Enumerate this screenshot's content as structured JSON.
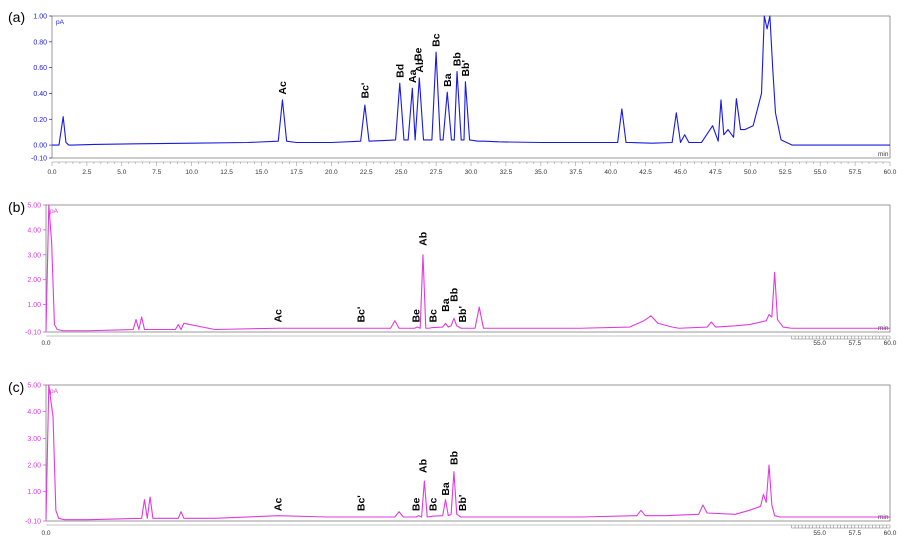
{
  "figure": {
    "panels": [
      {
        "label": "(a)",
        "yunit": "pA",
        "xunit": "min",
        "color": "#1a1adc",
        "yticks": [
          "1.00",
          "0.80",
          "0.60",
          "0.40",
          "0.20",
          "0.00",
          "-0.10"
        ],
        "ytick_values": [
          1.0,
          0.8,
          0.6,
          0.4,
          0.2,
          0.0,
          -0.1
        ],
        "xticks": [
          "0.0",
          "2.5",
          "5.0",
          "7.5",
          "10.0",
          "12.5",
          "15.0",
          "17.5",
          "20.0",
          "22.5",
          "25.0",
          "27.5",
          "30.0",
          "32.5",
          "35.0",
          "37.5",
          "40.0",
          "42.5",
          "45.0",
          "47.5",
          "50.0",
          "52.5",
          "55.0",
          "57.5",
          "60.0"
        ],
        "xtick_values": [
          0,
          2.5,
          5,
          7.5,
          10,
          12.5,
          15,
          17.5,
          20,
          22.5,
          25,
          27.5,
          30,
          32.5,
          35,
          37.5,
          40,
          42.5,
          45,
          47.5,
          50,
          52.5,
          55,
          57.5,
          60
        ],
        "peak_labels": [
          {
            "text": "Ac",
            "t": 16.5,
            "y": 0.36
          },
          {
            "text": "Bc'",
            "t": 22.4,
            "y": 0.33
          },
          {
            "text": "Bd",
            "t": 24.9,
            "y": 0.49
          },
          {
            "text": "Aa",
            "t": 25.8,
            "y": 0.45
          },
          {
            "text": "Ab",
            "t": 26.3,
            "y": 0.53
          },
          {
            "text": "Be",
            "t": 26.2,
            "y": 0.62
          },
          {
            "text": "Bc",
            "t": 27.5,
            "y": 0.73
          },
          {
            "text": "Ba",
            "t": 28.3,
            "y": 0.42
          },
          {
            "text": "Bb",
            "t": 29.0,
            "y": 0.58
          },
          {
            "text": "Bb'",
            "t": 29.6,
            "y": 0.5
          }
        ]
      },
      {
        "label": "(b)",
        "yunit": "pA",
        "xunit": "min",
        "color": "#e03be0",
        "yticks": [
          "5.00",
          "4.00",
          "3.00",
          "2.00",
          "1.00",
          "-0.10"
        ],
        "ytick_values": [
          5.0,
          4.0,
          3.0,
          2.0,
          1.0,
          -0.1
        ],
        "xticks": [
          "0.0",
          "55.0",
          "57.5",
          "60.0"
        ],
        "xtick_values": [
          0,
          55,
          57.5,
          60
        ],
        "peak_labels": [
          {
            "text": "Ac",
            "t": 16.5,
            "y": 0.12
          },
          {
            "text": "Bc'",
            "t": 22.4,
            "y": 0.12
          },
          {
            "text": "Be",
            "t": 26.3,
            "y": 0.12
          },
          {
            "text": "Ab",
            "t": 26.8,
            "y": 3.2
          },
          {
            "text": "Bc",
            "t": 27.5,
            "y": 0.12
          },
          {
            "text": "Ba",
            "t": 28.4,
            "y": 0.55
          },
          {
            "text": "Bb",
            "t": 29.0,
            "y": 0.95
          },
          {
            "text": "Bb'",
            "t": 29.6,
            "y": 0.12
          }
        ]
      },
      {
        "label": "(c)",
        "yunit": "pA",
        "xunit": "min",
        "color": "#e03be0",
        "yticks": [
          "5.00",
          "4.00",
          "3.00",
          "2.00",
          "1.00",
          "-0.10"
        ],
        "ytick_values": [
          5.0,
          4.0,
          3.0,
          2.0,
          1.0,
          -0.1
        ],
        "xticks": [
          "0.0",
          "55.0",
          "57.5",
          "60.0"
        ],
        "xtick_values": [
          0,
          55,
          57.5,
          60
        ],
        "peak_labels": [
          {
            "text": "Ac",
            "t": 16.5,
            "y": 0.12
          },
          {
            "text": "Bc'",
            "t": 22.4,
            "y": 0.12
          },
          {
            "text": "Be",
            "t": 26.3,
            "y": 0.12
          },
          {
            "text": "Ab",
            "t": 26.8,
            "y": 1.55
          },
          {
            "text": "Bc",
            "t": 27.5,
            "y": 0.12
          },
          {
            "text": "Ba",
            "t": 28.4,
            "y": 0.7
          },
          {
            "text": "Bb",
            "t": 29.0,
            "y": 1.85
          },
          {
            "text": "Bb'",
            "t": 29.6,
            "y": 0.12
          }
        ]
      }
    ]
  },
  "chart_data": [
    {
      "type": "line",
      "title": "",
      "xlabel": "min",
      "ylabel": "pA",
      "xlim": [
        0,
        60
      ],
      "ylim": [
        -0.1,
        1.0
      ],
      "grid": false,
      "series": [
        {
          "x": [
            0,
            0.5,
            0.8,
            1.0,
            1.2,
            1.5,
            3,
            6,
            10,
            14,
            16.2,
            16.5,
            16.8,
            17.5,
            20,
            22.1,
            22.4,
            22.7,
            24.6,
            24.9,
            25.2,
            25.5,
            25.8,
            26.0,
            26.3,
            26.6,
            27.2,
            27.5,
            27.8,
            28.0,
            28.3,
            28.6,
            28.8,
            29.0,
            29.3,
            29.5,
            29.6,
            29.9,
            30.5,
            31,
            32,
            35,
            38,
            40.5,
            40.8,
            41.1,
            41.4,
            43,
            44.4,
            44.7,
            45.0,
            45.3,
            45.6,
            46.5,
            47.3,
            47.7,
            47.9,
            48.1,
            48.4,
            48.8,
            49.0,
            49.3,
            49.6,
            50.2,
            50.8,
            51.0,
            51.2,
            51.4,
            51.6,
            51.8,
            52.2,
            53,
            56,
            60
          ],
          "y": [
            0.0,
            0.0,
            0.22,
            0.02,
            0.0,
            0.0,
            0.005,
            0.01,
            0.015,
            0.02,
            0.03,
            0.35,
            0.03,
            0.02,
            0.02,
            0.03,
            0.31,
            0.03,
            0.04,
            0.48,
            0.04,
            0.04,
            0.44,
            0.04,
            0.52,
            0.04,
            0.04,
            0.72,
            0.04,
            0.04,
            0.41,
            0.04,
            0.04,
            0.57,
            0.04,
            0.04,
            0.49,
            0.04,
            0.03,
            0.03,
            0.025,
            0.02,
            0.02,
            0.02,
            0.28,
            0.02,
            0.02,
            0.015,
            0.02,
            0.25,
            0.02,
            0.08,
            0.02,
            0.02,
            0.15,
            0.03,
            0.35,
            0.08,
            0.12,
            0.06,
            0.36,
            0.12,
            0.12,
            0.15,
            0.4,
            1.0,
            0.9,
            1.0,
            0.6,
            0.25,
            0.04,
            0.0,
            0.0,
            0.0
          ],
          "color": "#1a1adc"
        }
      ],
      "ticks_y": [
        "1.00",
        "0.80",
        "0.60",
        "0.40",
        "0.20",
        "0.00",
        "-0.10"
      ],
      "ticks_x": [
        "0.0",
        "2.5",
        "5.0",
        "7.5",
        "10.0",
        "12.5",
        "15.0",
        "17.5",
        "20.0",
        "22.5",
        "25.0",
        "27.5",
        "30.0",
        "32.5",
        "35.0",
        "37.5",
        "40.0",
        "42.5",
        "45.0",
        "47.5",
        "50.0",
        "52.5",
        "55.0",
        "57.5",
        "60.0"
      ]
    },
    {
      "type": "line",
      "title": "",
      "xlabel": "min",
      "ylabel": "pA",
      "xlim": [
        0,
        60
      ],
      "ylim": [
        -0.1,
        5.0
      ],
      "grid": false,
      "series": [
        {
          "x": [
            0,
            0.2,
            0.4,
            0.6,
            0.8,
            1.2,
            3,
            6.2,
            6.4,
            6.6,
            6.8,
            7.0,
            9.2,
            9.4,
            9.6,
            9.8,
            12,
            16.5,
            20,
            24.5,
            24.8,
            25.1,
            26.2,
            26.4,
            26.6,
            26.8,
            27.0,
            27.2,
            27.5,
            28.2,
            28.4,
            28.6,
            28.8,
            29.0,
            29.2,
            29.5,
            30.5,
            30.8,
            31.1,
            34,
            38,
            41.5,
            42.5,
            43,
            43.5,
            44.5,
            45,
            47,
            47.3,
            47.6,
            49,
            50,
            51.2,
            51.4,
            51.6,
            51.8,
            52.0,
            52.4,
            53,
            56,
            60
          ],
          "y": [
            -0.05,
            5.0,
            3.5,
            0.2,
            0.0,
            -0.05,
            -0.05,
            0.0,
            0.4,
            0.0,
            0.5,
            0.0,
            0.0,
            0.2,
            0.0,
            0.25,
            0.0,
            0.05,
            0.05,
            0.05,
            0.35,
            0.05,
            0.05,
            0.1,
            0.05,
            3.0,
            0.05,
            0.05,
            0.08,
            0.1,
            0.25,
            0.1,
            0.15,
            0.45,
            0.15,
            0.05,
            0.05,
            0.9,
            0.05,
            0.05,
            0.05,
            0.1,
            0.35,
            0.55,
            0.25,
            0.1,
            0.05,
            0.1,
            0.3,
            0.1,
            0.15,
            0.2,
            0.35,
            0.6,
            0.5,
            2.3,
            0.4,
            0.1,
            0.05,
            0.05,
            0.05
          ],
          "color": "#e03be0"
        }
      ],
      "ticks_y": [
        "5.00",
        "4.00",
        "3.00",
        "2.00",
        "1.00",
        "-0.10"
      ],
      "ticks_x": [
        "0.0",
        "55.0",
        "57.5",
        "60.0"
      ]
    },
    {
      "type": "line",
      "title": "",
      "xlabel": "min",
      "ylabel": "pA",
      "xlim": [
        0,
        60
      ],
      "ylim": [
        -0.1,
        5.0
      ],
      "grid": false,
      "series": [
        {
          "x": [
            0,
            0.2,
            0.5,
            0.7,
            0.9,
            1.3,
            3,
            6.8,
            7.0,
            7.2,
            7.4,
            7.6,
            9.4,
            9.6,
            9.8,
            12,
            16.5,
            20,
            24.8,
            25.1,
            25.4,
            26.3,
            26.5,
            26.7,
            26.9,
            27.1,
            27.5,
            28.2,
            28.4,
            28.6,
            28.8,
            29.0,
            29.2,
            29.5,
            30.5,
            31,
            34,
            38,
            42,
            42.3,
            42.6,
            44,
            46.4,
            46.7,
            47.0,
            49,
            50,
            50.8,
            51.0,
            51.2,
            51.4,
            51.6,
            51.8,
            52.2,
            53,
            56,
            60
          ],
          "y": [
            -0.05,
            5.0,
            3.8,
            0.3,
            0.0,
            -0.05,
            -0.05,
            0.0,
            0.7,
            0.0,
            0.8,
            0.0,
            0.0,
            0.25,
            0.0,
            0.0,
            0.1,
            0.05,
            0.05,
            0.25,
            0.05,
            0.05,
            0.1,
            0.05,
            1.4,
            0.05,
            0.08,
            0.1,
            0.7,
            0.1,
            0.15,
            1.75,
            0.15,
            0.05,
            0.05,
            0.05,
            0.05,
            0.05,
            0.1,
            0.3,
            0.1,
            0.1,
            0.15,
            0.5,
            0.2,
            0.15,
            0.3,
            0.45,
            0.9,
            0.6,
            2.0,
            0.5,
            0.1,
            0.05,
            0.05,
            0.05,
            0.05
          ],
          "color": "#e03be0"
        }
      ],
      "ticks_y": [
        "5.00",
        "4.00",
        "3.00",
        "2.00",
        "1.00",
        "-0.10"
      ],
      "ticks_x": [
        "0.0",
        "55.0",
        "57.5",
        "60.0"
      ]
    }
  ]
}
